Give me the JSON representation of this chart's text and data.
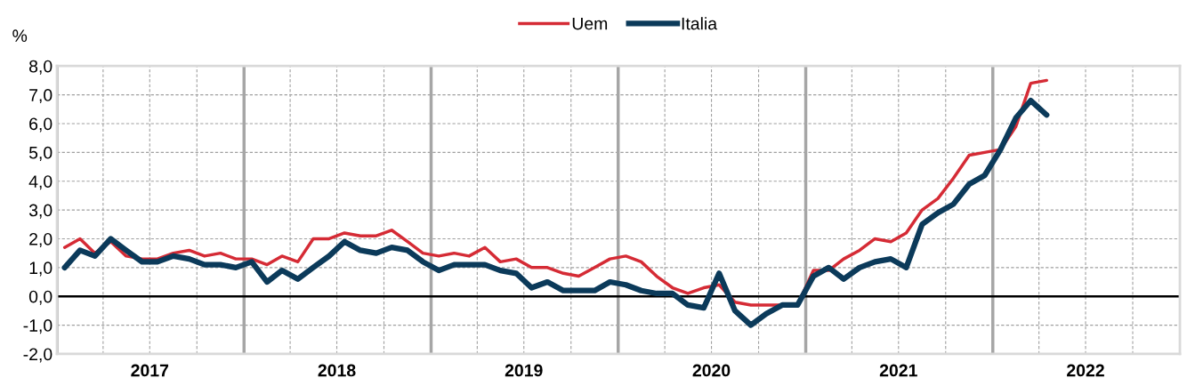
{
  "chart_data": {
    "type": "line",
    "ylabel": "%",
    "x": [
      "2017-01-16",
      "2017-02-15",
      "2017-03-16",
      "2017-04-16",
      "2017-05-16",
      "2017-06-16",
      "2017-07-16",
      "2017-08-16",
      "2017-09-16",
      "2017-10-16",
      "2017-11-16",
      "2017-12-16",
      "2018-01-16",
      "2018-02-15",
      "2018-03-16",
      "2018-04-16",
      "2018-05-16",
      "2018-06-16",
      "2018-07-16",
      "2018-08-16",
      "2018-09-16",
      "2018-10-16",
      "2018-11-16",
      "2018-12-16",
      "2019-01-16",
      "2019-02-15",
      "2019-03-16",
      "2019-04-16",
      "2019-05-16",
      "2019-06-16",
      "2019-07-16",
      "2019-08-16",
      "2019-09-16",
      "2019-10-16",
      "2019-11-16",
      "2019-12-16",
      "2020-01-16",
      "2020-02-15",
      "2020-03-16",
      "2020-04-16",
      "2020-05-16",
      "2020-06-16",
      "2020-07-16",
      "2020-08-16",
      "2020-09-16",
      "2020-10-16",
      "2020-11-16",
      "2020-12-16",
      "2021-01-16",
      "2021-02-15",
      "2021-03-16",
      "2021-04-16",
      "2021-05-16",
      "2021-06-16",
      "2021-07-16",
      "2021-08-16",
      "2021-09-16",
      "2021-10-16",
      "2021-11-16",
      "2021-12-16",
      "2022-01-16",
      "2022-02-15",
      "2022-03-16",
      "2022-04-16"
    ],
    "series": [
      {
        "name": "Uem",
        "color": "#d52b35",
        "values": [
          1.7,
          2.0,
          1.5,
          1.9,
          1.4,
          1.3,
          1.3,
          1.5,
          1.6,
          1.4,
          1.5,
          1.3,
          1.3,
          1.1,
          1.4,
          1.2,
          2.0,
          2.0,
          2.2,
          2.1,
          2.1,
          2.3,
          1.9,
          1.5,
          1.4,
          1.5,
          1.4,
          1.7,
          1.2,
          1.3,
          1.0,
          1.0,
          0.8,
          0.7,
          1.0,
          1.3,
          1.4,
          1.2,
          0.7,
          0.3,
          0.1,
          0.3,
          0.4,
          -0.2,
          -0.3,
          -0.3,
          -0.3,
          -0.3,
          0.9,
          0.9,
          1.3,
          1.6,
          2.0,
          1.9,
          2.2,
          3.0,
          3.4,
          4.1,
          4.9,
          5.0,
          5.1,
          5.9,
          7.4,
          7.5
        ]
      },
      {
        "name": "Italia",
        "color": "#0b3a5a",
        "values": [
          1.0,
          1.6,
          1.4,
          2.0,
          1.6,
          1.2,
          1.2,
          1.4,
          1.3,
          1.1,
          1.1,
          1.0,
          1.2,
          0.5,
          0.9,
          0.6,
          1.0,
          1.4,
          1.9,
          1.6,
          1.5,
          1.7,
          1.6,
          1.2,
          0.9,
          1.1,
          1.1,
          1.1,
          0.9,
          0.8,
          0.3,
          0.5,
          0.2,
          0.2,
          0.2,
          0.5,
          0.4,
          0.2,
          0.1,
          0.1,
          -0.3,
          -0.4,
          0.8,
          -0.5,
          -1.0,
          -0.6,
          -0.3,
          -0.3,
          0.7,
          1.0,
          0.6,
          1.0,
          1.2,
          1.3,
          1.0,
          2.5,
          2.9,
          3.2,
          3.9,
          4.2,
          5.1,
          6.2,
          6.8,
          6.3
        ]
      }
    ],
    "xlim": [
      "2017-01",
      "2023-01"
    ],
    "xticks": [
      {
        "value": "2017-01",
        "label": null
      },
      {
        "value": "2017-04",
        "label": null
      },
      {
        "value": "2017-07",
        "label": "2017"
      },
      {
        "value": "2017-10",
        "label": null
      },
      {
        "value": "2018-01",
        "label": null
      },
      {
        "value": "2018-04",
        "label": null
      },
      {
        "value": "2018-07",
        "label": "2018"
      },
      {
        "value": "2018-10",
        "label": null
      },
      {
        "value": "2019-01",
        "label": null
      },
      {
        "value": "2019-04",
        "label": null
      },
      {
        "value": "2019-07",
        "label": "2019"
      },
      {
        "value": "2019-10",
        "label": null
      },
      {
        "value": "2020-01",
        "label": null
      },
      {
        "value": "2020-04",
        "label": null
      },
      {
        "value": "2020-07",
        "label": "2020"
      },
      {
        "value": "2020-10",
        "label": null
      },
      {
        "value": "2021-01",
        "label": null
      },
      {
        "value": "2021-04",
        "label": null
      },
      {
        "value": "2021-07",
        "label": "2021"
      },
      {
        "value": "2021-10",
        "label": null
      },
      {
        "value": "2022-01",
        "label": null
      },
      {
        "value": "2022-04",
        "label": null
      },
      {
        "value": "2022-07",
        "label": "2022"
      },
      {
        "value": "2022-10",
        "label": null
      }
    ],
    "ylim": [
      -2,
      8
    ],
    "yticks": [
      {
        "value": -2,
        "label": "-2,0"
      },
      {
        "value": -1,
        "label": "-1,0"
      },
      {
        "value": 0,
        "label": "0,0"
      },
      {
        "value": 1,
        "label": "1,0"
      },
      {
        "value": 2,
        "label": "2,0"
      },
      {
        "value": 3,
        "label": "3,0"
      },
      {
        "value": 4,
        "label": "4,0"
      },
      {
        "value": 5,
        "label": "5,0"
      },
      {
        "value": 6,
        "label": "6,0"
      },
      {
        "value": 7,
        "label": "7,0"
      },
      {
        "value": 8,
        "label": "8,0"
      }
    ],
    "ref_lines": [
      {
        "axis": "y",
        "value": 0,
        "color": "#000000"
      }
    ],
    "grid": true,
    "legend": "top",
    "line_style": "solid",
    "marker": "none"
  }
}
